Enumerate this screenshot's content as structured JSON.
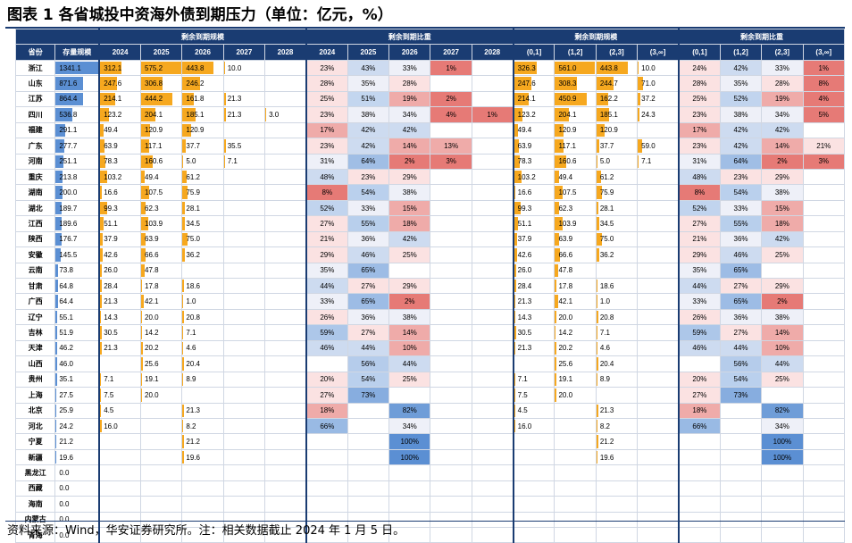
{
  "title": "图表 1 各省城投中资海外债到期压力（单位：亿元，%）",
  "footnote": "资料来源：Wind，华安证券研究所。注：相关数据截止 2024 年 1 月 5 日。",
  "header": {
    "group_scale": "剩余到期规模",
    "group_ratio": "剩余到期比重",
    "province": "省份",
    "stock": "存量规模",
    "years": [
      "2024",
      "2025",
      "2026",
      "2027",
      "2028"
    ],
    "buckets": [
      "(0,1]",
      "(1,2]",
      "(2,3]",
      "(3,∞]"
    ]
  },
  "colors": {
    "header_bg": "#1a3c72",
    "bar_orange": "#f6a81f",
    "bar_blue": "#5b8fd3",
    "heat_red": "#e5736f",
    "heat_blue": "#5b8fd3"
  },
  "rows": [
    {
      "p": "浙江",
      "s": "1341.1",
      "y": [
        "312.1",
        "575.2",
        "443.8",
        "10.0",
        ""
      ],
      "r": [
        "23%",
        "43%",
        "33%",
        "1%",
        ""
      ],
      "b": [
        "326.3",
        "561.0",
        "443.8",
        "10.0"
      ],
      "br": [
        "24%",
        "42%",
        "33%",
        "1%"
      ]
    },
    {
      "p": "山东",
      "s": "871.6",
      "y": [
        "247.6",
        "306.8",
        "246.2",
        "",
        ""
      ],
      "r": [
        "28%",
        "35%",
        "28%",
        "",
        ""
      ],
      "b": [
        "247.6",
        "308.3",
        "244.7",
        "71.0"
      ],
      "br": [
        "28%",
        "35%",
        "28%",
        "8%"
      ]
    },
    {
      "p": "江苏",
      "s": "864.4",
      "y": [
        "214.1",
        "444.2",
        "161.8",
        "21.3",
        ""
      ],
      "r": [
        "25%",
        "51%",
        "19%",
        "2%",
        ""
      ],
      "b": [
        "214.1",
        "450.9",
        "162.2",
        "37.2"
      ],
      "br": [
        "25%",
        "52%",
        "19%",
        "4%"
      ]
    },
    {
      "p": "四川",
      "s": "536.8",
      "y": [
        "123.2",
        "204.1",
        "185.1",
        "21.3",
        "3.0"
      ],
      "r": [
        "23%",
        "38%",
        "34%",
        "4%",
        "1%"
      ],
      "b": [
        "123.2",
        "204.1",
        "185.1",
        "24.3"
      ],
      "br": [
        "23%",
        "38%",
        "34%",
        "5%"
      ]
    },
    {
      "p": "福建",
      "s": "291.1",
      "y": [
        "49.4",
        "120.9",
        "120.9",
        "",
        ""
      ],
      "r": [
        "17%",
        "42%",
        "42%",
        "",
        ""
      ],
      "b": [
        "49.4",
        "120.9",
        "120.9",
        ""
      ],
      "br": [
        "17%",
        "42%",
        "42%",
        ""
      ]
    },
    {
      "p": "广东",
      "s": "277.7",
      "y": [
        "63.9",
        "117.1",
        "37.7",
        "35.5",
        ""
      ],
      "r": [
        "23%",
        "42%",
        "14%",
        "13%",
        ""
      ],
      "b": [
        "63.9",
        "117.1",
        "37.7",
        "59.0"
      ],
      "br": [
        "23%",
        "42%",
        "14%",
        "21%"
      ]
    },
    {
      "p": "河南",
      "s": "251.1",
      "y": [
        "78.3",
        "160.6",
        "5.0",
        "7.1",
        ""
      ],
      "r": [
        "31%",
        "64%",
        "2%",
        "3%",
        ""
      ],
      "b": [
        "78.3",
        "160.6",
        "5.0",
        "7.1"
      ],
      "br": [
        "31%",
        "64%",
        "2%",
        "3%"
      ]
    },
    {
      "p": "重庆",
      "s": "213.8",
      "y": [
        "103.2",
        "49.4",
        "61.2",
        "",
        ""
      ],
      "r": [
        "48%",
        "23%",
        "29%",
        "",
        ""
      ],
      "b": [
        "103.2",
        "49.4",
        "61.2",
        ""
      ],
      "br": [
        "48%",
        "23%",
        "29%",
        ""
      ]
    },
    {
      "p": "湖南",
      "s": "200.0",
      "y": [
        "16.6",
        "107.5",
        "75.9",
        "",
        ""
      ],
      "r": [
        "8%",
        "54%",
        "38%",
        "",
        ""
      ],
      "b": [
        "16.6",
        "107.5",
        "75.9",
        ""
      ],
      "br": [
        "8%",
        "54%",
        "38%",
        ""
      ]
    },
    {
      "p": "湖北",
      "s": "189.7",
      "y": [
        "99.3",
        "62.3",
        "28.1",
        "",
        ""
      ],
      "r": [
        "52%",
        "33%",
        "15%",
        "",
        ""
      ],
      "b": [
        "99.3",
        "62.3",
        "28.1",
        ""
      ],
      "br": [
        "52%",
        "33%",
        "15%",
        ""
      ]
    },
    {
      "p": "江西",
      "s": "189.6",
      "y": [
        "51.1",
        "103.9",
        "34.5",
        "",
        ""
      ],
      "r": [
        "27%",
        "55%",
        "18%",
        "",
        ""
      ],
      "b": [
        "51.1",
        "103.9",
        "34.5",
        ""
      ],
      "br": [
        "27%",
        "55%",
        "18%",
        ""
      ]
    },
    {
      "p": "陕西",
      "s": "176.7",
      "y": [
        "37.9",
        "63.9",
        "75.0",
        "",
        ""
      ],
      "r": [
        "21%",
        "36%",
        "42%",
        "",
        ""
      ],
      "b": [
        "37.9",
        "63.9",
        "75.0",
        ""
      ],
      "br": [
        "21%",
        "36%",
        "42%",
        ""
      ]
    },
    {
      "p": "安徽",
      "s": "145.5",
      "y": [
        "42.6",
        "66.6",
        "36.2",
        "",
        ""
      ],
      "r": [
        "29%",
        "46%",
        "25%",
        "",
        ""
      ],
      "b": [
        "42.6",
        "66.6",
        "36.2",
        ""
      ],
      "br": [
        "29%",
        "46%",
        "25%",
        ""
      ]
    },
    {
      "p": "云南",
      "s": "73.8",
      "y": [
        "26.0",
        "47.8",
        "",
        "",
        ""
      ],
      "r": [
        "35%",
        "65%",
        "",
        "",
        ""
      ],
      "b": [
        "26.0",
        "47.8",
        "",
        ""
      ],
      "br": [
        "35%",
        "65%",
        "",
        ""
      ]
    },
    {
      "p": "甘肃",
      "s": "64.8",
      "y": [
        "28.4",
        "17.8",
        "18.6",
        "",
        ""
      ],
      "r": [
        "44%",
        "27%",
        "29%",
        "",
        ""
      ],
      "b": [
        "28.4",
        "17.8",
        "18.6",
        ""
      ],
      "br": [
        "44%",
        "27%",
        "29%",
        ""
      ]
    },
    {
      "p": "广西",
      "s": "64.4",
      "y": [
        "21.3",
        "42.1",
        "1.0",
        "",
        ""
      ],
      "r": [
        "33%",
        "65%",
        "2%",
        "",
        ""
      ],
      "b": [
        "21.3",
        "42.1",
        "1.0",
        ""
      ],
      "br": [
        "33%",
        "65%",
        "2%",
        ""
      ]
    },
    {
      "p": "辽宁",
      "s": "55.1",
      "y": [
        "14.3",
        "20.0",
        "20.8",
        "",
        ""
      ],
      "r": [
        "26%",
        "36%",
        "38%",
        "",
        ""
      ],
      "b": [
        "14.3",
        "20.0",
        "20.8",
        ""
      ],
      "br": [
        "26%",
        "36%",
        "38%",
        ""
      ]
    },
    {
      "p": "吉林",
      "s": "51.9",
      "y": [
        "30.5",
        "14.2",
        "7.1",
        "",
        ""
      ],
      "r": [
        "59%",
        "27%",
        "14%",
        "",
        ""
      ],
      "b": [
        "30.5",
        "14.2",
        "7.1",
        ""
      ],
      "br": [
        "59%",
        "27%",
        "14%",
        ""
      ]
    },
    {
      "p": "天津",
      "s": "46.2",
      "y": [
        "21.3",
        "20.2",
        "4.6",
        "",
        ""
      ],
      "r": [
        "46%",
        "44%",
        "10%",
        "",
        ""
      ],
      "b": [
        "21.3",
        "20.2",
        "4.6",
        ""
      ],
      "br": [
        "46%",
        "44%",
        "10%",
        ""
      ]
    },
    {
      "p": "山西",
      "s": "46.0",
      "y": [
        "",
        "25.6",
        "20.4",
        "",
        ""
      ],
      "r": [
        "",
        "56%",
        "44%",
        "",
        ""
      ],
      "b": [
        "",
        "25.6",
        "20.4",
        ""
      ],
      "br": [
        "",
        "56%",
        "44%",
        ""
      ]
    },
    {
      "p": "贵州",
      "s": "35.1",
      "y": [
        "7.1",
        "19.1",
        "8.9",
        "",
        ""
      ],
      "r": [
        "20%",
        "54%",
        "25%",
        "",
        ""
      ],
      "b": [
        "7.1",
        "19.1",
        "8.9",
        ""
      ],
      "br": [
        "20%",
        "54%",
        "25%",
        ""
      ]
    },
    {
      "p": "上海",
      "s": "27.5",
      "y": [
        "7.5",
        "20.0",
        "",
        "",
        ""
      ],
      "r": [
        "27%",
        "73%",
        "",
        "",
        ""
      ],
      "b": [
        "7.5",
        "20.0",
        "",
        ""
      ],
      "br": [
        "27%",
        "73%",
        "",
        ""
      ]
    },
    {
      "p": "北京",
      "s": "25.9",
      "y": [
        "4.5",
        "",
        "21.3",
        "",
        ""
      ],
      "r": [
        "18%",
        "",
        "82%",
        "",
        ""
      ],
      "b": [
        "4.5",
        "",
        "21.3",
        ""
      ],
      "br": [
        "18%",
        "",
        "82%",
        ""
      ]
    },
    {
      "p": "河北",
      "s": "24.2",
      "y": [
        "16.0",
        "",
        "8.2",
        "",
        ""
      ],
      "r": [
        "66%",
        "",
        "34%",
        "",
        ""
      ],
      "b": [
        "16.0",
        "",
        "8.2",
        ""
      ],
      "br": [
        "66%",
        "",
        "34%",
        ""
      ]
    },
    {
      "p": "宁夏",
      "s": "21.2",
      "y": [
        "",
        "",
        "21.2",
        "",
        ""
      ],
      "r": [
        "",
        "",
        "100%",
        "",
        ""
      ],
      "b": [
        "",
        "",
        "21.2",
        ""
      ],
      "br": [
        "",
        "",
        "100%",
        ""
      ]
    },
    {
      "p": "新疆",
      "s": "19.6",
      "y": [
        "",
        "",
        "19.6",
        "",
        ""
      ],
      "r": [
        "",
        "",
        "100%",
        "",
        ""
      ],
      "b": [
        "",
        "",
        "19.6",
        ""
      ],
      "br": [
        "",
        "",
        "100%",
        ""
      ]
    },
    {
      "p": "黑龙江",
      "s": "0.0",
      "y": [
        "",
        "",
        "",
        "",
        ""
      ],
      "r": [
        "",
        "",
        "",
        "",
        ""
      ],
      "b": [
        "",
        "",
        "",
        ""
      ],
      "br": [
        "",
        "",
        "",
        ""
      ]
    },
    {
      "p": "西藏",
      "s": "0.0",
      "y": [
        "",
        "",
        "",
        "",
        ""
      ],
      "r": [
        "",
        "",
        "",
        "",
        ""
      ],
      "b": [
        "",
        "",
        "",
        ""
      ],
      "br": [
        "",
        "",
        "",
        ""
      ]
    },
    {
      "p": "海南",
      "s": "0.0",
      "y": [
        "",
        "",
        "",
        "",
        ""
      ],
      "r": [
        "",
        "",
        "",
        "",
        ""
      ],
      "b": [
        "",
        "",
        "",
        ""
      ],
      "br": [
        "",
        "",
        "",
        ""
      ]
    },
    {
      "p": "内蒙古",
      "s": "0.0",
      "y": [
        "",
        "",
        "",
        "",
        ""
      ],
      "r": [
        "",
        "",
        "",
        "",
        ""
      ],
      "b": [
        "",
        "",
        "",
        ""
      ],
      "br": [
        "",
        "",
        "",
        ""
      ]
    },
    {
      "p": "青海",
      "s": "0.0",
      "y": [
        "",
        "",
        "",
        "",
        ""
      ],
      "r": [
        "",
        "",
        "",
        "",
        ""
      ],
      "b": [
        "",
        "",
        "",
        ""
      ],
      "br": [
        "",
        "",
        "",
        ""
      ]
    }
  ]
}
